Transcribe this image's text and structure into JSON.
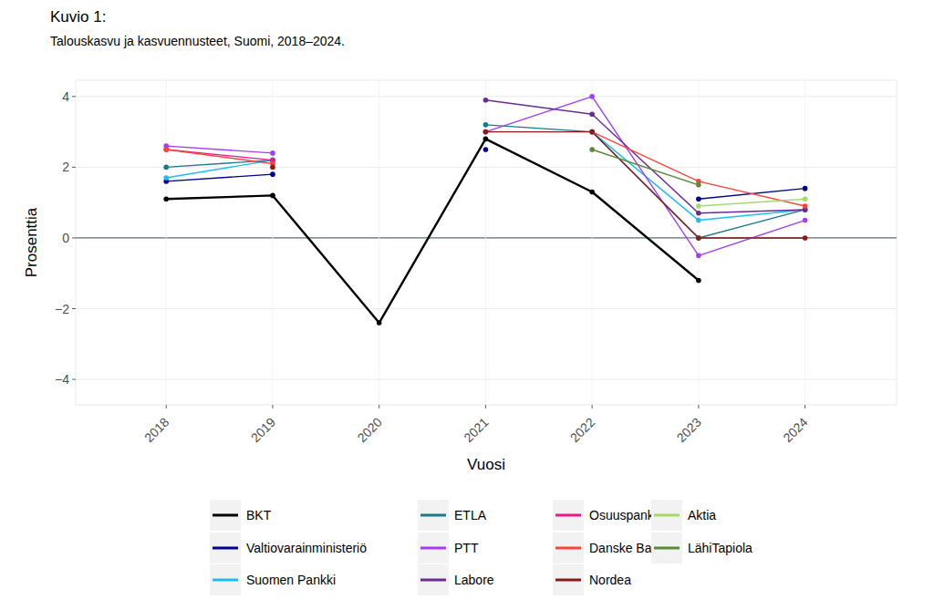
{
  "chart_data": {
    "type": "line",
    "title": "Kuvio 1:",
    "subtitle": "Talouskasvu ja kasvuennusteet, Suomi, 2018–2024.",
    "x_label": "Vuosi",
    "y_label": "Prosenttia",
    "x": [
      2018,
      2019,
      2020,
      2021,
      2022,
      2023,
      2024
    ],
    "xlim": [
      2017.15,
      2024.86
    ],
    "xticks": [
      2018,
      2019,
      2020,
      2021,
      2022,
      2023,
      2024
    ],
    "ylim": [
      -4.72,
      4.46
    ],
    "yticks": [
      {
        "value": -4,
        "label": "−4"
      },
      {
        "value": -2,
        "label": "−2"
      },
      0,
      2,
      4
    ],
    "grid": true,
    "legend": "bottom",
    "marker": "circle",
    "series": [
      {
        "name": "BKT",
        "color": "#000000",
        "values": [
          1.1,
          1.2,
          -2.4,
          2.8,
          1.3,
          -1.2,
          null
        ]
      },
      {
        "name": "Valtiovarainministeriö",
        "color": "#00008b",
        "values": [
          1.6,
          1.8,
          null,
          2.5,
          null,
          1.1,
          1.4
        ]
      },
      {
        "name": "Suomen Pankki",
        "color": "#1ebcf0",
        "values": [
          1.7,
          2.2,
          null,
          null,
          3.0,
          0.5,
          0.8
        ]
      },
      {
        "name": "ETLA",
        "color": "#1a7a8c",
        "values": [
          2.0,
          2.2,
          null,
          3.2,
          3.0,
          0.0,
          0.8
        ]
      },
      {
        "name": "PTT",
        "color": "#a040f0",
        "values": [
          2.6,
          2.4,
          null,
          3.0,
          4.0,
          -0.5,
          0.5
        ]
      },
      {
        "name": "Labore",
        "color": "#6a2c91",
        "values": [
          null,
          null,
          null,
          3.9,
          3.5,
          0.7,
          0.8
        ]
      },
      {
        "name": "Osuuspankki",
        "color": "#e6198a",
        "values": [
          2.5,
          2.2,
          null,
          null,
          null,
          null,
          null
        ]
      },
      {
        "name": "Danske Bank",
        "color": "#f8463f",
        "values": [
          2.5,
          2.1,
          null,
          null,
          3.0,
          1.6,
          0.9
        ]
      },
      {
        "name": "Nordea",
        "color": "#8b1a1a",
        "values": [
          null,
          2.0,
          null,
          3.0,
          3.0,
          0.0,
          0.0
        ]
      },
      {
        "name": "Aktia",
        "color": "#a6d96a",
        "values": [
          null,
          null,
          null,
          null,
          null,
          0.9,
          1.1
        ]
      },
      {
        "name": "LähiTapiola",
        "color": "#5a8a3a",
        "values": [
          null,
          null,
          null,
          null,
          2.5,
          1.5,
          null
        ]
      }
    ]
  }
}
